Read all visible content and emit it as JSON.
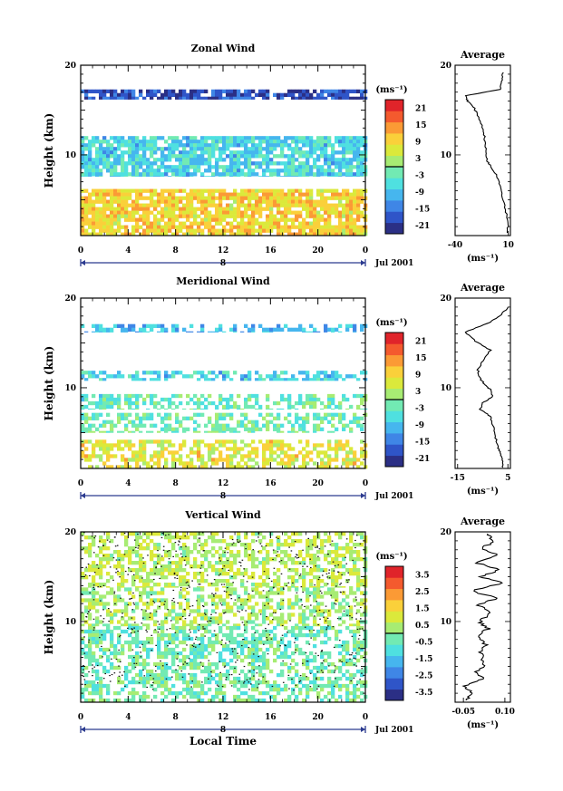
{
  "colormap": [
    "#2b2f85",
    "#2f55c8",
    "#3f86e6",
    "#46b6ee",
    "#4fe0e0",
    "#72eab3",
    "#a7ec73",
    "#dbe93b",
    "#fad03a",
    "#fb9a35",
    "#f45a2e",
    "#e0242a"
  ],
  "footer": {
    "xlabel": "Local Time"
  },
  "chart_data": [
    {
      "type": "heatmap",
      "title": "Zonal Wind",
      "ylabel": "Height (km)",
      "x_ticks": [
        "0",
        "4",
        "8",
        "12",
        "16",
        "20",
        "0"
      ],
      "day_label": "8",
      "date_label": "Jul 2001",
      "xlim": [
        0,
        24
      ],
      "ylim": [
        1,
        20
      ],
      "y_ticks": [
        "20",
        "10"
      ],
      "y_tick_values": [
        20,
        10
      ],
      "colorbar": {
        "unit": "(ms⁻¹)",
        "ticks": [
          "21",
          "15",
          "9",
          "3",
          "-3",
          "-9",
          "-15",
          "-21"
        ],
        "range": [
          -24,
          24
        ]
      },
      "layers": [
        {
          "from_km": 16.2,
          "to_km": 17.3,
          "value": -19
        },
        {
          "from_km": 7.6,
          "to_km": 12.1,
          "value": -7
        },
        {
          "from_km": 1.0,
          "to_km": 6.2,
          "value": 9
        }
      ],
      "profile": {
        "title": "Average",
        "x_ticks": [
          "-40",
          "10"
        ],
        "x_tick_values": [
          -40,
          10
        ],
        "xlim": [
          -40,
          12
        ],
        "unit": "(ms⁻¹)",
        "y_ticks": [
          "20",
          "10"
        ],
        "points": [
          [
            5,
            19.2
          ],
          [
            4,
            18.2
          ],
          [
            2,
            17.3
          ],
          [
            -30,
            16.6
          ],
          [
            -28,
            16.0
          ],
          [
            -22,
            15.2
          ],
          [
            -17,
            14.0
          ],
          [
            -13,
            12.6
          ],
          [
            -12,
            11.5
          ],
          [
            -11,
            10.3
          ],
          [
            -10,
            9.4
          ],
          [
            -6,
            8.6
          ],
          [
            -1,
            7.8
          ],
          [
            2,
            6.8
          ],
          [
            5,
            5.2
          ],
          [
            8,
            3.6
          ],
          [
            10,
            2.4
          ],
          [
            9,
            1.3
          ]
        ]
      }
    },
    {
      "type": "heatmap",
      "title": "Meridional Wind",
      "ylabel": "Height (km)",
      "x_ticks": [
        "0",
        "4",
        "8",
        "12",
        "16",
        "20",
        "0"
      ],
      "day_label": "8",
      "date_label": "Jul 2001",
      "xlim": [
        0,
        24
      ],
      "ylim": [
        1,
        20
      ],
      "y_ticks": [
        "20",
        "10"
      ],
      "y_tick_values": [
        20,
        10
      ],
      "colorbar": {
        "unit": "(ms⁻¹)",
        "ticks": [
          "21",
          "15",
          "9",
          "3",
          "-3",
          "-9",
          "-15",
          "-21"
        ],
        "range": [
          -24,
          24
        ]
      },
      "layers": [
        {
          "from_km": 16.2,
          "to_km": 17.1,
          "value": -10
        },
        {
          "from_km": 10.8,
          "to_km": 11.9,
          "value": -7
        },
        {
          "from_km": 7.6,
          "to_km": 9.3,
          "value": -3
        },
        {
          "from_km": 5.0,
          "to_km": 7.2,
          "value": -2
        },
        {
          "from_km": 1.0,
          "to_km": 4.2,
          "value": 7
        }
      ],
      "profile": {
        "title": "Average",
        "x_ticks": [
          "-15",
          "5"
        ],
        "x_tick_values": [
          -15,
          5
        ],
        "xlim": [
          -16,
          6
        ],
        "unit": "(ms⁻¹)",
        "y_ticks": [
          "20",
          "10"
        ],
        "points": [
          [
            5,
            19.0
          ],
          [
            2,
            18.0
          ],
          [
            -3,
            17.2
          ],
          [
            -12,
            16.2
          ],
          [
            -8,
            15.2
          ],
          [
            -2,
            14.2
          ],
          [
            -5,
            13.0
          ],
          [
            -7,
            12.0
          ],
          [
            -6,
            11.0
          ],
          [
            -4,
            10.3
          ],
          [
            -2,
            9.8
          ],
          [
            -1,
            9.0
          ],
          [
            -5,
            8.3
          ],
          [
            -6,
            7.6
          ],
          [
            -2,
            6.8
          ],
          [
            -1,
            5.8
          ],
          [
            0,
            4.6
          ],
          [
            1,
            3.4
          ],
          [
            2,
            2.6
          ],
          [
            3,
            1.8
          ],
          [
            3,
            1.1
          ]
        ]
      }
    },
    {
      "type": "heatmap",
      "title": "Vertical Wind",
      "ylabel": "Height (km)",
      "x_ticks": [
        "0",
        "4",
        "8",
        "12",
        "16",
        "20",
        "0"
      ],
      "day_label": "8",
      "date_label": "Jul 2001",
      "xlim": [
        0,
        24
      ],
      "ylim": [
        1,
        20
      ],
      "y_ticks": [
        "20",
        "10"
      ],
      "y_tick_values": [
        20,
        10
      ],
      "colorbar": {
        "unit": "(ms⁻¹)",
        "ticks": [
          "3.5",
          "2.5",
          "1.5",
          "0.5",
          "-0.5",
          "-1.5",
          "-2.5",
          "-3.5"
        ],
        "range": [
          -4,
          4
        ]
      },
      "layers": [
        {
          "from_km": 13.8,
          "to_km": 20.0,
          "value": 0.6
        },
        {
          "from_km": 9.5,
          "to_km": 13.8,
          "value": 0.4
        },
        {
          "from_km": 1.0,
          "to_km": 9.5,
          "value": -0.3
        }
      ],
      "profile": {
        "title": "Average",
        "x_ticks": [
          "-0.05",
          "0.10"
        ],
        "x_tick_values": [
          -0.05,
          0.1
        ],
        "xlim": [
          -0.08,
          0.12
        ],
        "unit": "(ms⁻¹)",
        "y_ticks": [
          "20",
          "10"
        ],
        "points": [
          [
            0.03,
            19.8
          ],
          [
            0.06,
            19.0
          ],
          [
            0.02,
            18.2
          ],
          [
            0.07,
            17.4
          ],
          [
            0.0,
            16.5
          ],
          [
            0.08,
            15.8
          ],
          [
            0.01,
            15.0
          ],
          [
            0.09,
            14.3
          ],
          [
            -0.02,
            13.4
          ],
          [
            0.07,
            12.6
          ],
          [
            0.0,
            11.8
          ],
          [
            0.05,
            11.0
          ],
          [
            0.01,
            10.0
          ],
          [
            0.04,
            9.2
          ],
          [
            0.0,
            8.3
          ],
          [
            0.03,
            7.4
          ],
          [
            0.01,
            6.4
          ],
          [
            0.03,
            5.4
          ],
          [
            0.0,
            4.4
          ],
          [
            0.02,
            3.6
          ],
          [
            -0.05,
            2.8
          ],
          [
            -0.02,
            2.0
          ],
          [
            -0.04,
            1.2
          ]
        ]
      }
    }
  ]
}
